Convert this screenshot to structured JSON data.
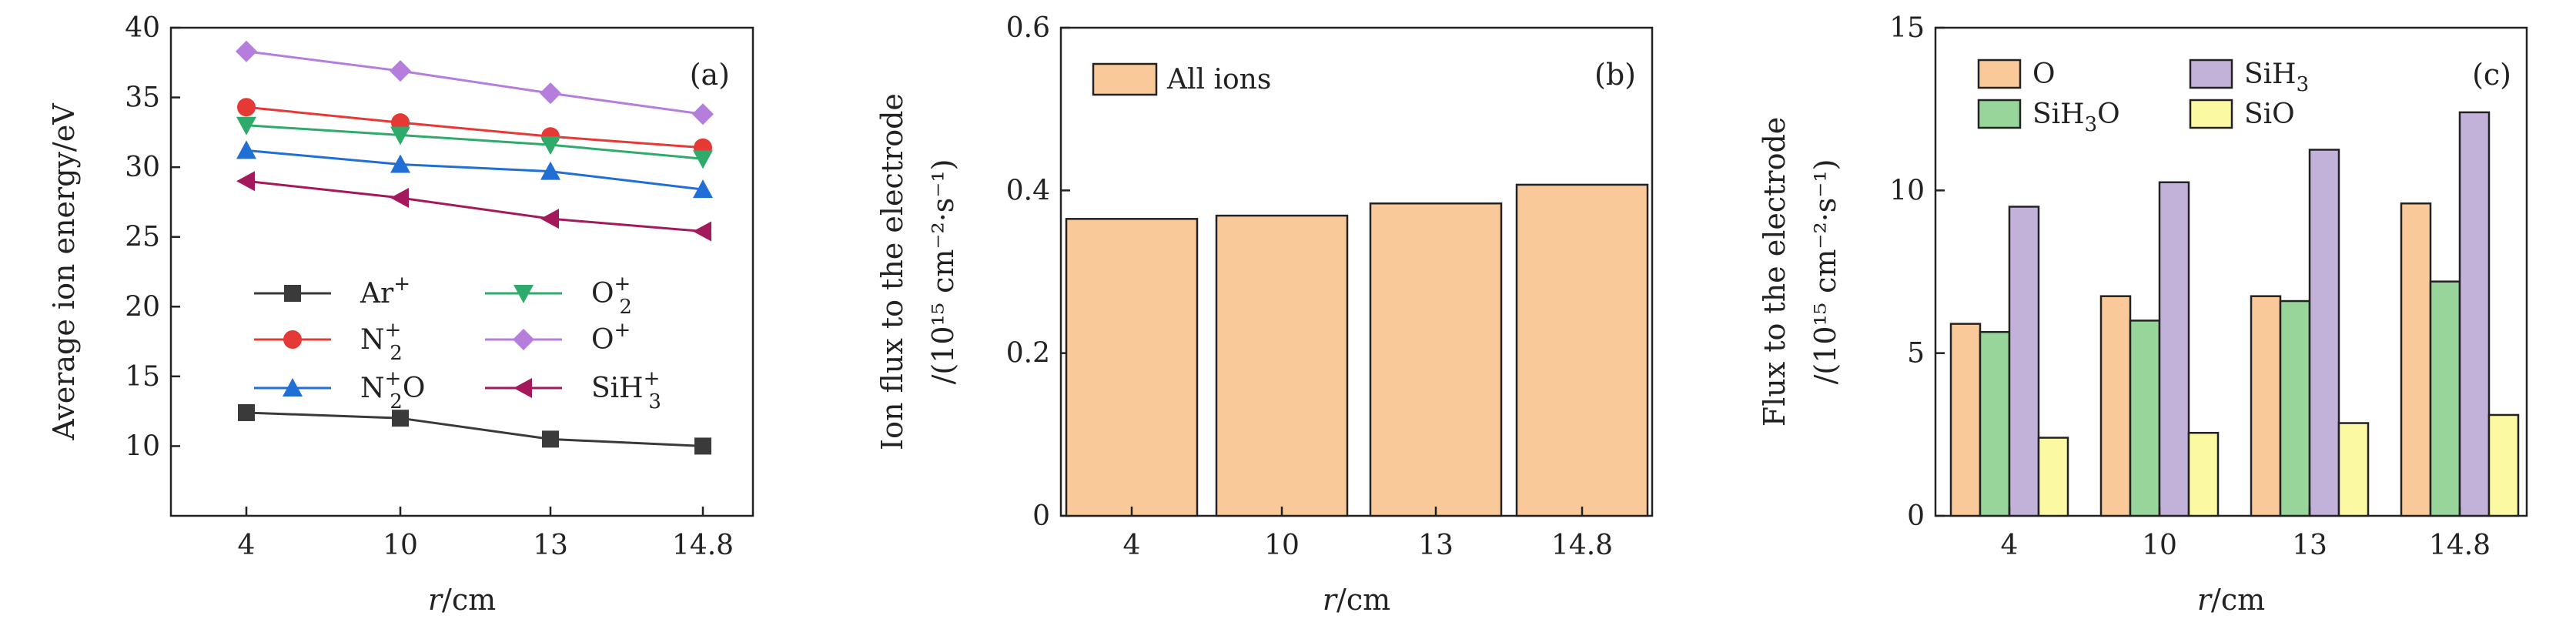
{
  "chart_data": [
    {
      "panel_label": "(a)",
      "type": "line",
      "categories": [
        "4",
        "10",
        "13",
        "14.8"
      ],
      "xlabel": "r/cm",
      "xlabel_var": "r",
      "xlabel_unit": "/cm",
      "ylabel": "Average ion energy/eV",
      "ylim": [
        5,
        40
      ],
      "yticks": [
        "10",
        "15",
        "20",
        "25",
        "30",
        "35",
        "40"
      ],
      "legend_position": "lower-center",
      "series": [
        {
          "name": "Ar",
          "sup": "+",
          "sub": "",
          "marker": "square",
          "color": "#3a3a3a",
          "values": [
            12.4,
            12.0,
            10.5,
            10.0
          ]
        },
        {
          "name": "N",
          "sup": "+",
          "sub": "2",
          "marker": "circle",
          "color": "#e53935",
          "values": [
            34.3,
            33.2,
            32.2,
            31.4
          ]
        },
        {
          "name": "N",
          "sup": "+",
          "sub": "2",
          "suffix": "O",
          "marker": "triangle-up",
          "color": "#1f6fd6",
          "values": [
            31.2,
            30.2,
            29.7,
            28.4
          ]
        },
        {
          "name": "O",
          "sup": "+",
          "sub": "2",
          "marker": "triangle-down",
          "color": "#2eaa6b",
          "values": [
            33.0,
            32.3,
            31.6,
            30.6
          ]
        },
        {
          "name": "O",
          "sup": "+",
          "sub": "",
          "marker": "diamond",
          "color": "#b57edc",
          "values": [
            38.3,
            36.9,
            35.3,
            33.8
          ]
        },
        {
          "name": "SiH",
          "sup": "+",
          "sub": "3",
          "marker": "triangle-left",
          "color": "#a3195b",
          "values": [
            29.0,
            27.8,
            26.3,
            25.4
          ]
        }
      ]
    },
    {
      "panel_label": "(b)",
      "type": "bar",
      "categories": [
        "4",
        "10",
        "13",
        "14.8"
      ],
      "xlabel": "r/cm",
      "xlabel_var": "r",
      "xlabel_unit": "/cm",
      "ylabel_line1": "Ion flux to the electrode",
      "ylabel_line2": "/(10¹⁵ cm⁻²·s⁻¹)",
      "ylim": [
        0,
        0.6
      ],
      "yticks": [
        "0",
        "0.2",
        "0.4",
        "0.6"
      ],
      "legend_position": "top-left",
      "series": [
        {
          "name": "All ions",
          "color": "#f9c99a",
          "values": [
            0.365,
            0.369,
            0.384,
            0.407
          ]
        }
      ]
    },
    {
      "panel_label": "(c)",
      "type": "bar",
      "categories": [
        "4",
        "10",
        "13",
        "14.8"
      ],
      "xlabel": "r/cm",
      "xlabel_var": "r",
      "xlabel_unit": "/cm",
      "ylabel_line1": "Flux to the electrode",
      "ylabel_line2": "/(10¹⁵ cm⁻²·s⁻¹)",
      "ylim": [
        0,
        15
      ],
      "yticks": [
        "0",
        "5",
        "10",
        "15"
      ],
      "legend_position": "top",
      "series": [
        {
          "name": "O",
          "sub": "",
          "color": "#f9c99a",
          "values": [
            5.9,
            6.75,
            6.75,
            9.6
          ]
        },
        {
          "name": "SiH",
          "sub": "3",
          "suffix": "O",
          "color": "#98d59a",
          "values": [
            5.65,
            6.0,
            6.6,
            7.2
          ]
        },
        {
          "name": "SiH",
          "sub": "3",
          "color": "#c2b2d9",
          "values": [
            9.5,
            10.25,
            11.25,
            12.4
          ]
        },
        {
          "name": "SiO",
          "sub": "",
          "color": "#fbfaa2",
          "values": [
            2.4,
            2.55,
            2.85,
            3.1
          ]
        }
      ]
    }
  ]
}
